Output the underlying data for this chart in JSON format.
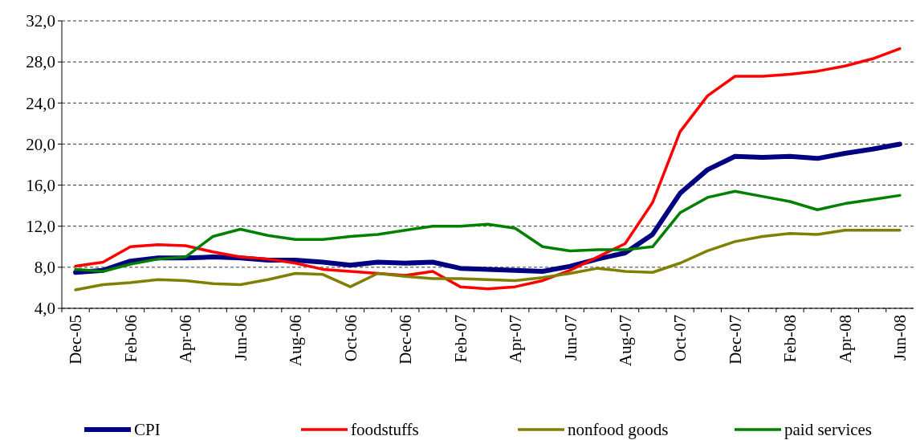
{
  "chart_data": {
    "type": "line",
    "categories": [
      "Dec-05",
      null,
      "Feb-06",
      null,
      "Apr-06",
      null,
      "Jun-06",
      null,
      "Aug-06",
      null,
      "Oct-06",
      null,
      "Dec-06",
      null,
      "Feb-07",
      null,
      "Apr-07",
      null,
      "Jun-07",
      null,
      "Aug-07",
      null,
      "Oct-07",
      null,
      "Dec-07",
      null,
      "Feb-08",
      null,
      "Apr-08",
      null,
      "Jun-08"
    ],
    "series": [
      {
        "name": "CPI",
        "color": "#000080",
        "values": [
          7.5,
          7.7,
          8.6,
          8.9,
          8.9,
          9.0,
          8.9,
          8.7,
          8.7,
          8.5,
          8.2,
          8.5,
          8.4,
          8.5,
          7.9,
          7.8,
          7.7,
          7.6,
          8.1,
          8.8,
          9.4,
          11.2,
          15.2,
          17.5,
          18.8,
          18.7,
          18.8,
          18.6,
          19.1,
          19.5,
          20.0
        ]
      },
      {
        "name": "foodstuffs",
        "color": "#ff0000",
        "values": [
          8.1,
          8.5,
          10.0,
          10.2,
          10.1,
          9.5,
          9.0,
          8.8,
          8.4,
          7.8,
          7.6,
          7.4,
          7.2,
          7.6,
          6.1,
          5.9,
          6.1,
          6.7,
          7.7,
          9.0,
          10.3,
          14.3,
          21.2,
          24.7,
          26.6,
          26.6,
          26.8,
          27.1,
          27.6,
          28.3,
          29.3
        ]
      },
      {
        "name": "nonfood goods",
        "color": "#808000",
        "values": [
          5.8,
          6.3,
          6.5,
          6.8,
          6.7,
          6.4,
          6.3,
          6.8,
          7.4,
          7.3,
          6.1,
          7.4,
          7.1,
          6.9,
          6.9,
          6.8,
          6.7,
          7.0,
          7.4,
          7.9,
          7.6,
          7.5,
          8.4,
          9.6,
          10.5,
          11.0,
          11.3,
          11.2,
          11.6,
          11.6,
          11.6
        ]
      },
      {
        "name": "paid services",
        "color": "#008000",
        "values": [
          7.8,
          7.6,
          8.3,
          8.8,
          9.0,
          11.0,
          11.7,
          11.1,
          10.7,
          10.7,
          11.0,
          11.2,
          11.6,
          12.0,
          12.0,
          12.2,
          11.8,
          10.0,
          9.6,
          9.7,
          9.7,
          10.0,
          13.3,
          14.8,
          15.4,
          14.9,
          14.4,
          13.6,
          14.2,
          14.6,
          15.0
        ]
      }
    ],
    "ylim": [
      4,
      32
    ],
    "yticks": [
      {
        "value": 4,
        "label": "4,0"
      },
      {
        "value": 8,
        "label": "8,0"
      },
      {
        "value": 12,
        "label": "12,0"
      },
      {
        "value": 16,
        "label": "16,0"
      },
      {
        "value": 20,
        "label": "20,0"
      },
      {
        "value": 24,
        "label": "24,0"
      },
      {
        "value": 28,
        "label": "28,0"
      },
      {
        "value": 32,
        "label": "32,0"
      }
    ],
    "grid": "y",
    "legend": "bottom",
    "marker": "none",
    "line_style": "solid"
  }
}
